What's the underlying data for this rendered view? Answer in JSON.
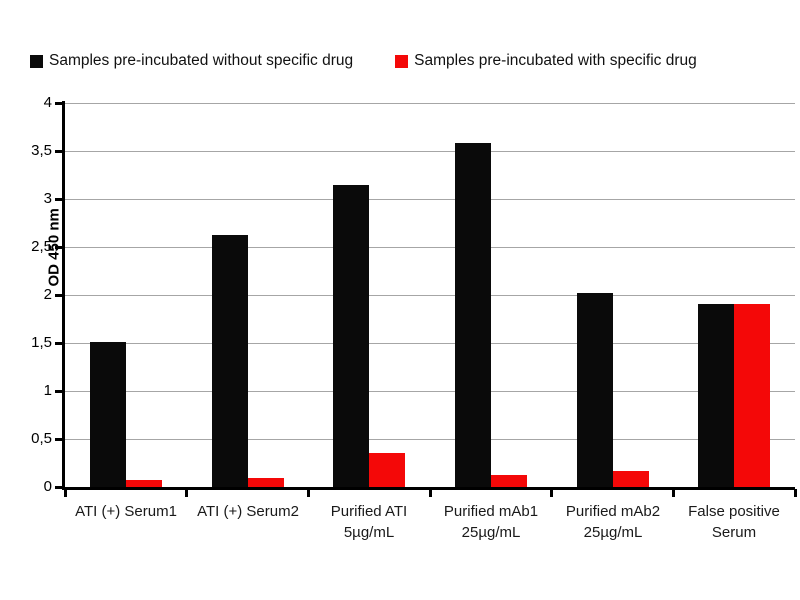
{
  "legend": {
    "items": [
      {
        "label": "Samples pre-incubated without specific drug",
        "color": "#0a0a0a"
      },
      {
        "label": "Samples pre-incubated with specific drug",
        "color": "#f40808"
      }
    ]
  },
  "chart_data": {
    "type": "bar",
    "title": "",
    "xlabel": "",
    "ylabel": "OD 450 nm",
    "ylim": [
      0,
      4
    ],
    "ytick_step": 0.5,
    "ytick_labels": [
      "0",
      "0,5",
      "1",
      "1,5",
      "2",
      "2,5",
      "3",
      "3,5",
      "4"
    ],
    "grid": true,
    "legend_position": "top",
    "categories": [
      "ATI (+) Serum1",
      "ATI (+) Serum2",
      "Purified ATI 5µg/mL",
      "Purified mAb1 25µg/mL",
      "Purified mAb2 25µg/mL",
      "False positive Serum"
    ],
    "category_label_lines": [
      [
        "ATI (+) Serum1"
      ],
      [
        "ATI (+) Serum2"
      ],
      [
        "Purified ATI",
        "5µg/mL"
      ],
      [
        "Purified mAb1",
        "25µg/mL"
      ],
      [
        "Purified mAb2",
        "25µg/mL"
      ],
      [
        "False positive",
        "Serum"
      ]
    ],
    "series": [
      {
        "name": "Samples pre-incubated without specific drug",
        "color": "#0a0a0a",
        "values": [
          1.51,
          2.63,
          3.15,
          3.58,
          2.02,
          1.91
        ]
      },
      {
        "name": "Samples pre-incubated with specific drug",
        "color": "#f40808",
        "values": [
          0.07,
          0.09,
          0.35,
          0.13,
          0.17,
          1.91
        ]
      }
    ],
    "colors": {
      "gridline": "#a6a6a6",
      "axis": "#000000"
    }
  }
}
